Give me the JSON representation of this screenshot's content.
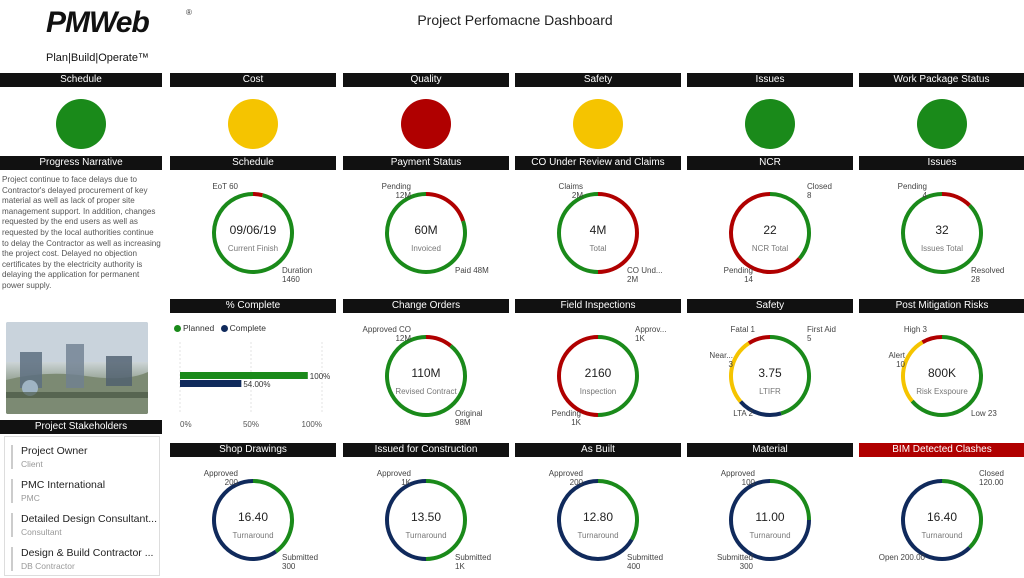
{
  "title": "Project Perfomacne Dashboard",
  "logo": {
    "word": "PMWeb",
    "reg": "®",
    "tagline": "Plan|Build|Operate™"
  },
  "colors": {
    "green": "#1a8a1a",
    "red": "#b00000",
    "amber": "#f5c400",
    "navy": "#102a5c",
    "dark": "#111111"
  },
  "status": [
    {
      "label": "Schedule",
      "color": "green"
    },
    {
      "label": "Cost",
      "color": "amber"
    },
    {
      "label": "Quality",
      "color": "red"
    },
    {
      "label": "Safety",
      "color": "amber"
    },
    {
      "label": "Issues",
      "color": "green"
    },
    {
      "label": "Work Package Status",
      "color": "green"
    }
  ],
  "narrative": {
    "title": "Progress Narrative",
    "text": "Project continue to face delays due to Contractor's delayed procurement of key material as well as lack of proper site management support. In addition, changes requested by the end users as well as requested by the local authorities continue to delay the Contractor as well as increasing the project cost. Delayed no objection certificates by the electricity authority is delaying the application for permanent power supply."
  },
  "percent_complete": {
    "title": "% Complete",
    "legend": [
      "Planned",
      "Complete"
    ],
    "bars": [
      {
        "name": "Planned",
        "value": 100,
        "label": "100%",
        "color": "green"
      },
      {
        "name": "Complete",
        "value": 54,
        "label": "54.00%",
        "color": "navy"
      }
    ],
    "ticks": [
      "0%",
      "50%",
      "100%"
    ]
  },
  "stakeholders": {
    "title": "Project Stakeholders",
    "items": [
      {
        "name": "Project Owner",
        "role": "Client"
      },
      {
        "name": "PMC International",
        "role": "PMC"
      },
      {
        "name": "Detailed Design Consultant...",
        "role": "Consultant"
      },
      {
        "name": "Design & Build Contractor ...",
        "role": "DB Contractor"
      }
    ]
  },
  "donuts": {
    "schedule": {
      "title": "Schedule",
      "value": "09/06/19",
      "sub": "Current Finish",
      "segments": [
        {
          "v": 60,
          "c": "red"
        },
        {
          "v": 1460,
          "c": "green"
        }
      ],
      "labels": {
        "tl": "EoT 60",
        "br": "Duration\n1460"
      }
    },
    "payment": {
      "title": "Payment Status",
      "value": "60M",
      "sub": "Invoiced",
      "segments": [
        {
          "v": 12,
          "c": "red"
        },
        {
          "v": 48,
          "c": "green"
        }
      ],
      "labels": {
        "tl": "Pending\n12M",
        "br": "Paid 48M"
      }
    },
    "co": {
      "title": "CO Under Review and Claims",
      "value": "4M",
      "sub": "Total",
      "segments": [
        {
          "v": 2,
          "c": "red"
        },
        {
          "v": 2,
          "c": "green"
        }
      ],
      "labels": {
        "tl": "Claims\n2M",
        "br": "CO Und...\n2M"
      }
    },
    "ncr": {
      "title": "NCR",
      "value": "22",
      "sub": "NCR Total",
      "segments": [
        {
          "v": 8,
          "c": "green"
        },
        {
          "v": 14,
          "c": "red"
        }
      ],
      "labels": {
        "tr": "Closed\n8",
        "bl": "Pending\n14"
      }
    },
    "issues": {
      "title": "Issues",
      "value": "32",
      "sub": "Issues Total",
      "segments": [
        {
          "v": 4,
          "c": "red"
        },
        {
          "v": 28,
          "c": "green"
        }
      ],
      "labels": {
        "tl": "Pending\n4",
        "br": "Resolved\n28"
      }
    },
    "changeorders": {
      "title": "Change Orders",
      "value": "110M",
      "sub": "Revised Contract",
      "segments": [
        {
          "v": 12,
          "c": "red"
        },
        {
          "v": 98,
          "c": "green"
        }
      ],
      "labels": {
        "tl": "Approved CO\n12M",
        "br": "Original\n98M"
      }
    },
    "field": {
      "title": "Field Inspections",
      "value": "2160",
      "sub": "Inspection",
      "segments": [
        {
          "v": 1,
          "c": "green"
        },
        {
          "v": 1,
          "c": "red"
        }
      ],
      "labels": {
        "tr": "Approv...\n1K",
        "bl": "Pending\n1K"
      }
    },
    "safety": {
      "title": "Safety",
      "value": "3.75",
      "sub": "LTIFR",
      "segments": [
        {
          "v": 5,
          "c": "green"
        },
        {
          "v": 2,
          "c": "navy"
        },
        {
          "v": 3,
          "c": "amber"
        },
        {
          "v": 1,
          "c": "red"
        }
      ],
      "labels": {
        "tl": "Fatal 1",
        "tr": "First Aid\n5",
        "ml": "Near...\n3",
        "bl": "LTA 2"
      }
    },
    "risks": {
      "title": "Post Mitigation Risks",
      "value": "800K",
      "sub": "Risk Exspoure",
      "segments": [
        {
          "v": 23,
          "c": "green"
        },
        {
          "v": 10,
          "c": "amber"
        },
        {
          "v": 3,
          "c": "red"
        }
      ],
      "labels": {
        "tl": "High 3",
        "ml": "Alert\n10",
        "br": "Low 23"
      }
    },
    "shop": {
      "title": "Shop Drawings",
      "value": "16.40",
      "sub": "Turnaround",
      "segments": [
        {
          "v": 200,
          "c": "green"
        },
        {
          "v": 300,
          "c": "navy"
        }
      ],
      "labels": {
        "tl": "Approved\n200",
        "br": "Submitted\n300"
      }
    },
    "ifc": {
      "title": "Issued for Construction",
      "value": "13.50",
      "sub": "Turnaround",
      "segments": [
        {
          "v": 1,
          "c": "green"
        },
        {
          "v": 1,
          "c": "navy"
        }
      ],
      "labels": {
        "tl": "Approved\n1K",
        "br": "Submitted\n1K"
      }
    },
    "asbuilt": {
      "title": "As Built",
      "value": "12.80",
      "sub": "Turnaround",
      "segments": [
        {
          "v": 200,
          "c": "green"
        },
        {
          "v": 400,
          "c": "navy"
        }
      ],
      "labels": {
        "tl": "Approved\n200",
        "br": "Submitted\n400"
      }
    },
    "material": {
      "title": "Material",
      "value": "11.00",
      "sub": "Turnaround",
      "segments": [
        {
          "v": 100,
          "c": "green"
        },
        {
          "v": 300,
          "c": "navy"
        }
      ],
      "labels": {
        "tl": "Approved\n100",
        "bl": "Submitted\n300"
      }
    },
    "bim": {
      "title": "BIM Detected Clashes",
      "value": "16.40",
      "sub": "Turnaround",
      "segments": [
        {
          "v": 120,
          "c": "green"
        },
        {
          "v": 200,
          "c": "navy"
        }
      ],
      "labels": {
        "tr": "Closed\n120.00",
        "bl": "Open 200.00"
      }
    }
  }
}
